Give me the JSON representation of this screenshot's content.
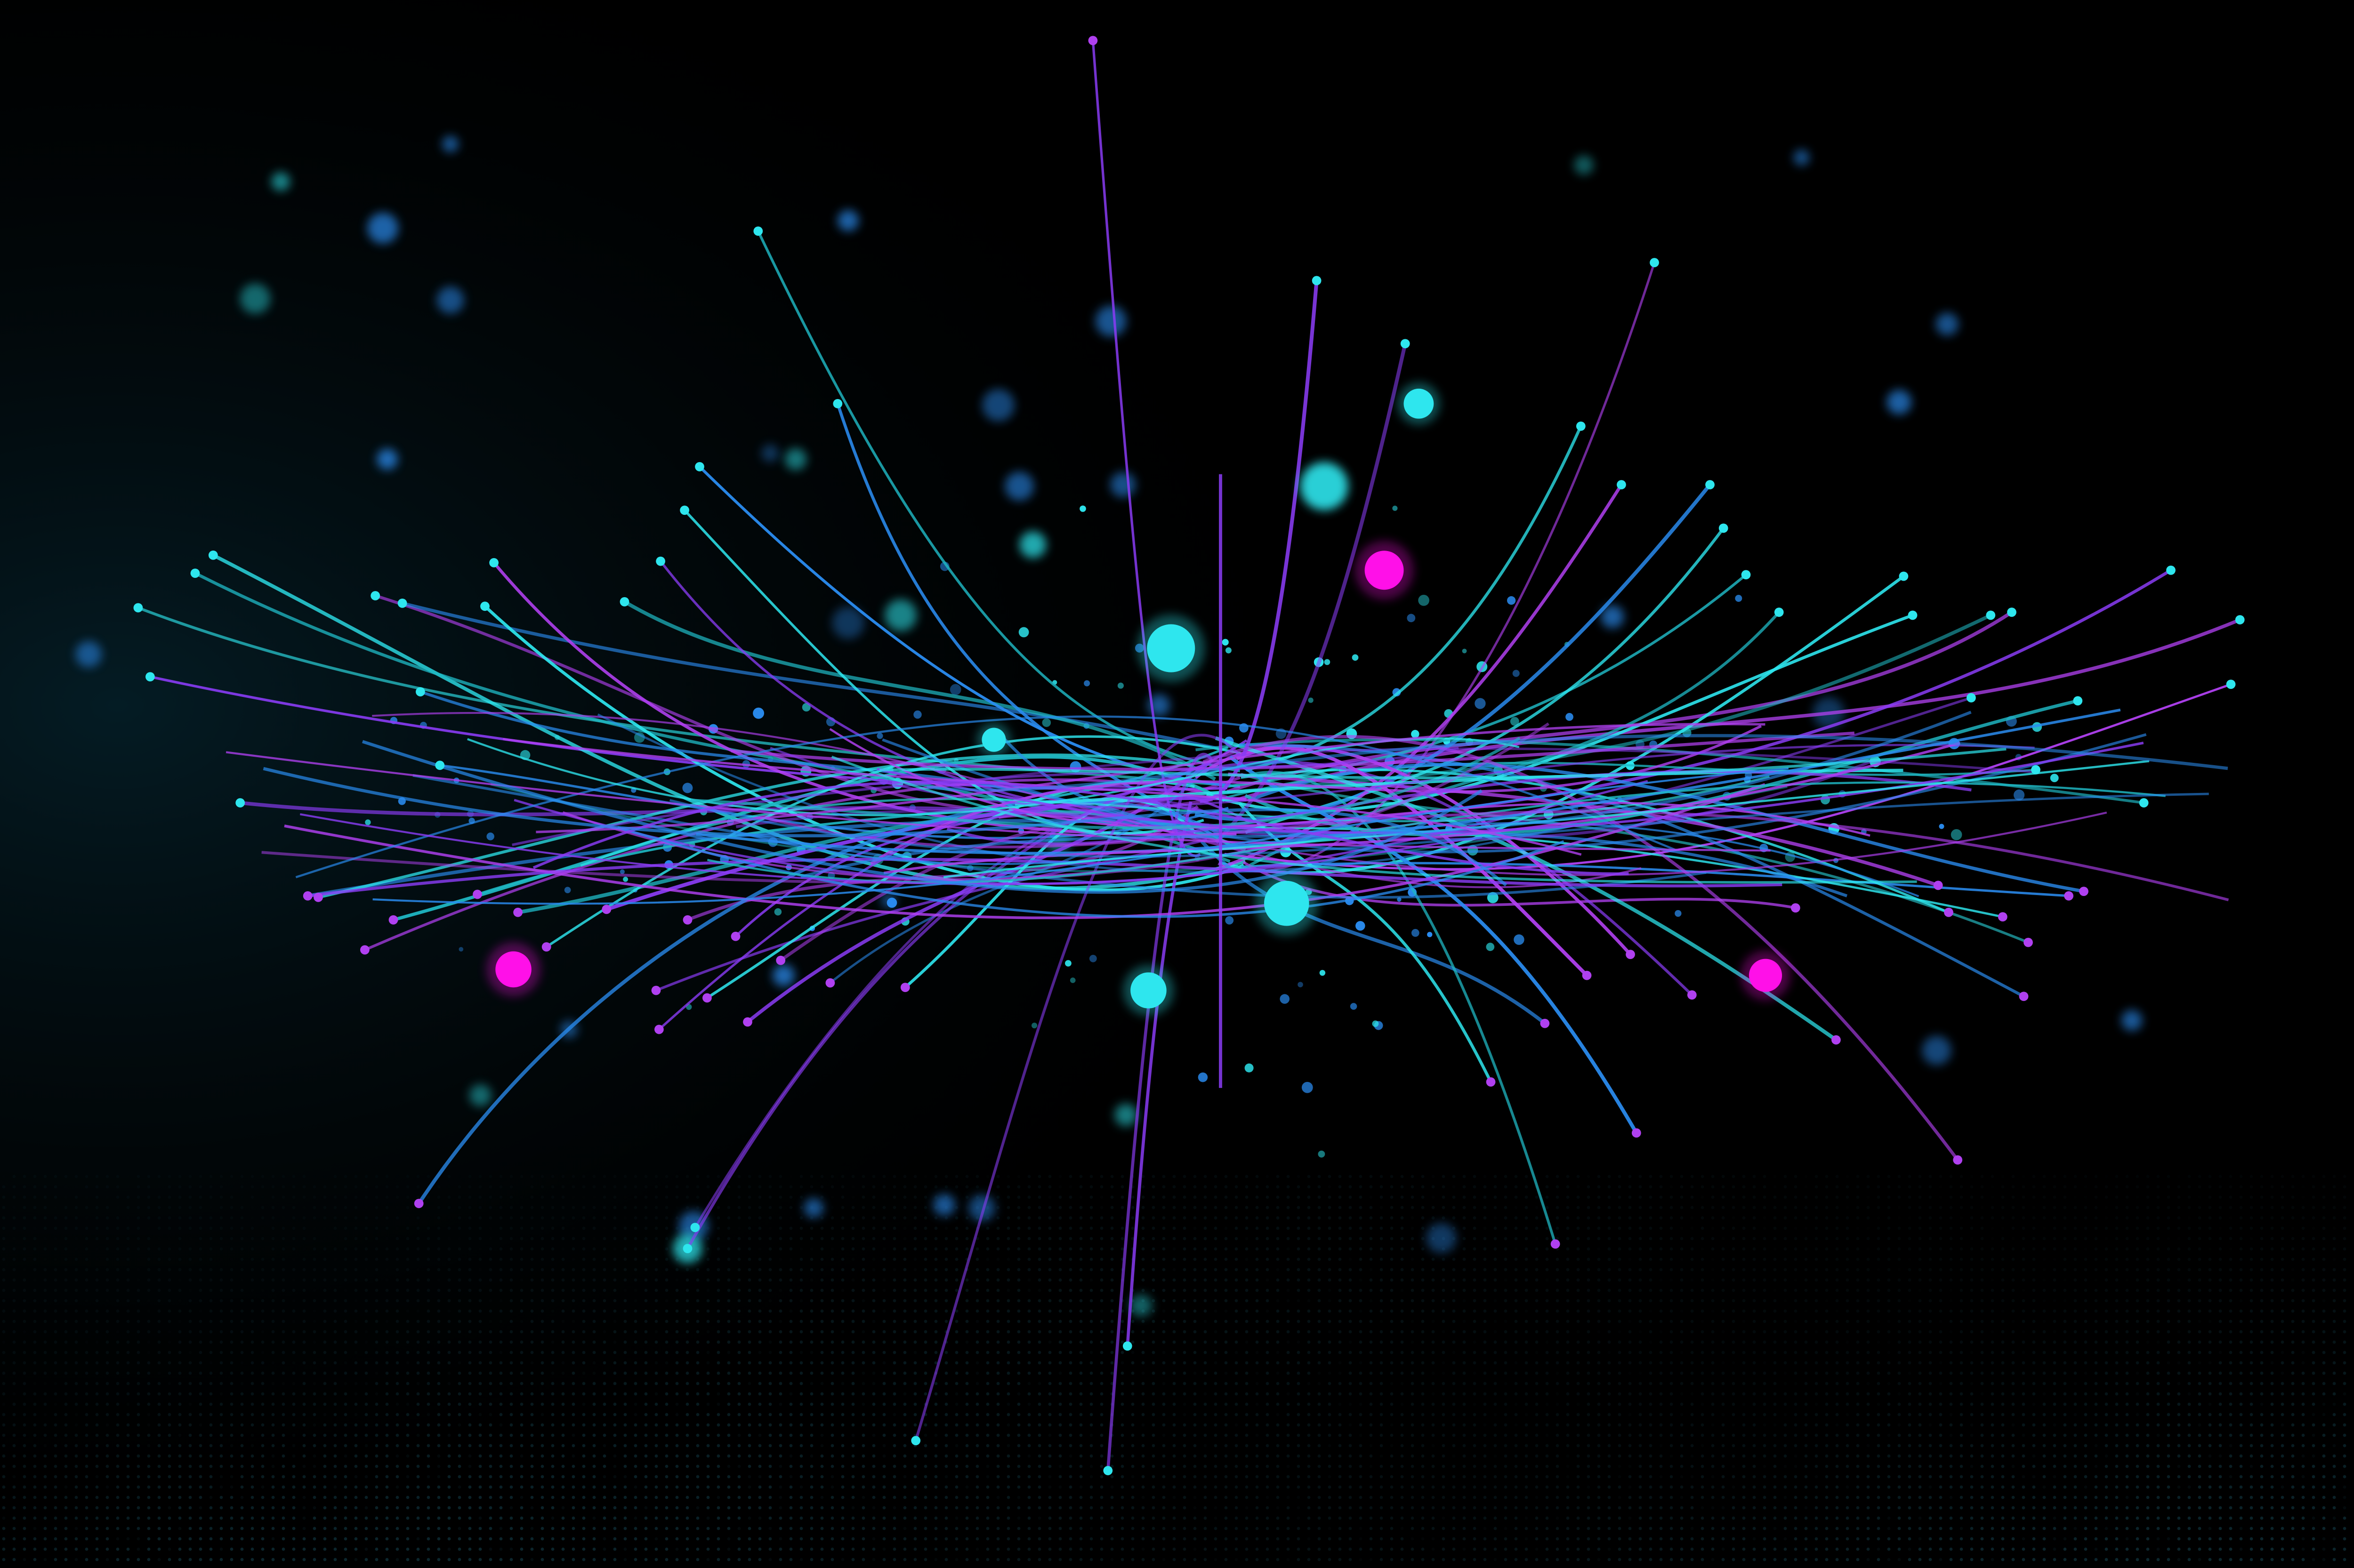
{
  "image": {
    "kind": "abstract-network-illustration",
    "text_elements": []
  },
  "palette": {
    "background": "#000000",
    "background_glow": "#062530",
    "cyan": "#2ee6ee",
    "teal": "#1fb8c4",
    "blue": "#2a8cf0",
    "violet": "#8a3cf5",
    "purple": "#b040f0",
    "magenta": "#ff10e8",
    "grid_dots": "#123a45"
  },
  "icons": {
    "large_node": "filled-circle",
    "small_node": "dot",
    "bokeh": "blurred-glow-dot"
  },
  "visible_elements": {
    "large_cyan_nodes": 6,
    "large_magenta_nodes": 3,
    "central_axis_line": 1
  }
}
